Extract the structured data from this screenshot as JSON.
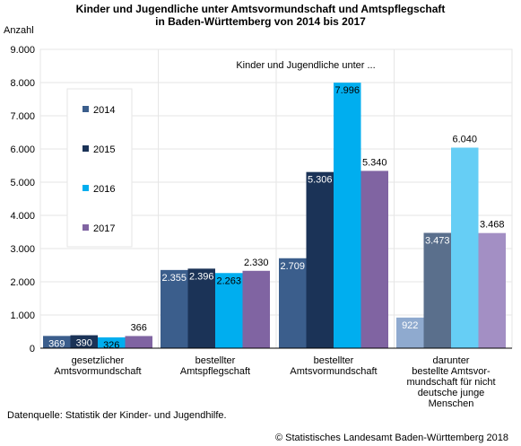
{
  "title_line1": "Kinder und Jugendliche unter Amtsvormundschaft und Amtspflegschaft",
  "title_line2": "in Baden-Württemberg von 2014 bis 2017",
  "ylabel": "Anzahl",
  "annotation": "Kinder und Jugendliche unter ...",
  "source": "Datenquelle: Statistik der Kinder- und Jugendhilfe.",
  "copyright": "© Statistisches Landesamt Baden-Württemberg 2018",
  "chart_data": {
    "type": "bar",
    "categories": [
      [
        "gesetzlicher",
        "Amtsvormundschaft"
      ],
      [
        "bestellter",
        "Amtspflegschaft"
      ],
      [
        "bestellter",
        "Amtsvormundschaft"
      ],
      [
        "darunter",
        "bestellte Amtsvor-",
        "mundschaft für nicht",
        "deutsche junge",
        "Menschen"
      ]
    ],
    "series": [
      {
        "name": "2014",
        "color": "#3b5e8c",
        "values": [
          369,
          2355,
          2709,
          922
        ],
        "labels": [
          "369",
          "2.355",
          "2.709",
          "922"
        ]
      },
      {
        "name": "2015",
        "color": "#1b3357",
        "values": [
          390,
          2396,
          5306,
          3473
        ],
        "labels": [
          "390",
          "2.396",
          "5.306",
          "3.473"
        ]
      },
      {
        "name": "2016",
        "color": "#00aeef",
        "values": [
          326,
          2263,
          7996,
          6040
        ],
        "labels": [
          "326",
          "2.263",
          "7.996",
          "6.040"
        ]
      },
      {
        "name": "2017",
        "color": "#8064a2",
        "values": [
          366,
          2330,
          5340,
          3468
        ],
        "labels": [
          "366",
          "2.330",
          "5.340",
          "3.468"
        ]
      }
    ],
    "last_group_colors": [
      "#8faacf",
      "#5a6f8c",
      "#66cef5",
      "#a38fc4"
    ],
    "yticks": [
      "0",
      "1.000",
      "2.000",
      "3.000",
      "4.000",
      "5.000",
      "6.000",
      "7.000",
      "8.000",
      "9.000"
    ],
    "ylim": [
      0,
      9000
    ],
    "grid": true,
    "legend_position": "top-left"
  }
}
